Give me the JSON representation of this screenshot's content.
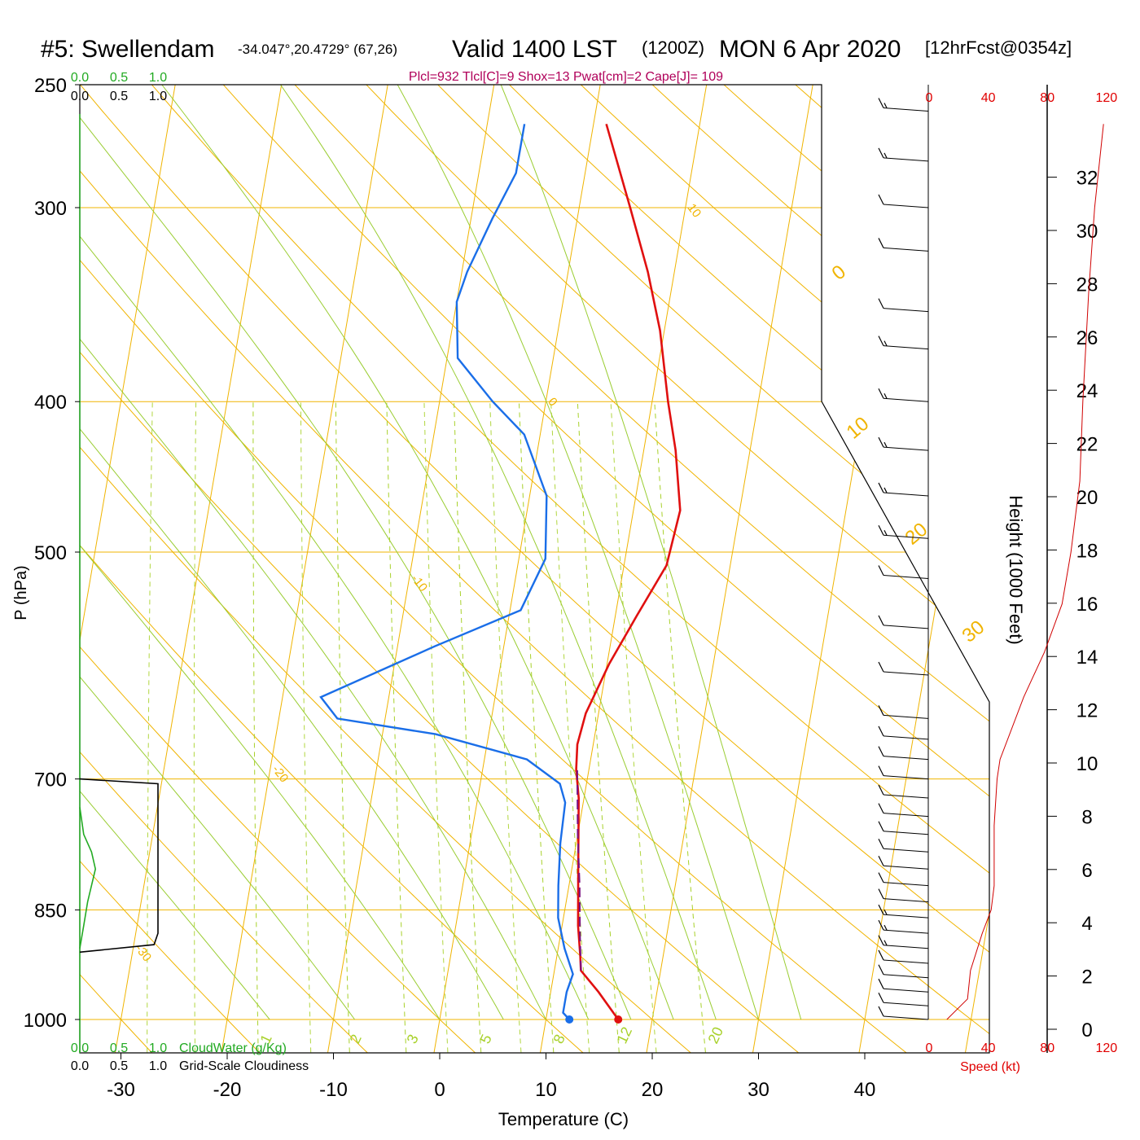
{
  "header": {
    "station": "#5: Swellendam",
    "coords": "-34.047°,20.4729° (67,26)",
    "valid": "Valid 1400 LST",
    "utc": "(1200Z)",
    "date": "MON 6 Apr 2020",
    "forecast": "[12hrFcst@0354z]",
    "indices": "Plcl=932 Tlcl[C]=9 Shox=13 Pwat[cm]=2 Cape[J]= 109"
  },
  "chart_data": {
    "type": "skew-t sounding",
    "xlabel": "Temperature (C)",
    "ylabel": "P (hPa)",
    "x_ticks": [
      -30,
      -20,
      -10,
      0,
      10,
      20,
      30,
      40
    ],
    "pressure_levels": [
      250,
      300,
      400,
      500,
      700,
      850,
      1000
    ],
    "pressure_tick_labels": [
      "250",
      "300",
      "400",
      "500",
      "700",
      "850",
      "1000"
    ],
    "height_label": "Height (1000 Feet)",
    "height_ticks": [
      0,
      2,
      4,
      6,
      8,
      10,
      12,
      14,
      16,
      18,
      20,
      22,
      24,
      26,
      28,
      30,
      32
    ],
    "speed_label": "Speed (kt)",
    "speed_ticks": [
      0,
      40,
      80,
      120
    ],
    "cloud_scale_ticks": [
      "0.0",
      "0.5",
      "1.0"
    ],
    "cloud_water_label": "CloudWater (g/Kg)",
    "cloudiness_label": "Grid-Scale Cloudiness",
    "isotherm_labels": [
      {
        "text": "10",
        "t": 10,
        "p": 300
      },
      {
        "text": "0",
        "t": 0,
        "p": 400
      },
      {
        "text": "-10",
        "t": -10,
        "p": 520
      },
      {
        "text": "-20",
        "t": -20,
        "p": 690
      },
      {
        "text": "-30",
        "t": -30,
        "p": 900
      }
    ],
    "theta_labels": [
      "0",
      "10",
      "20",
      "30"
    ],
    "mixing_ratio_labels": [
      "1",
      "2",
      "3",
      "5",
      "8",
      "12",
      "20"
    ],
    "mixing_ratios": [
      1,
      2,
      3,
      5,
      8,
      12,
      20
    ],
    "temperature_profile": [
      [
        16.8,
        1000
      ],
      [
        14.5,
        960
      ],
      [
        12.5,
        930
      ],
      [
        12.2,
        910
      ],
      [
        11.5,
        870
      ],
      [
        10.6,
        800
      ],
      [
        9.5,
        720
      ],
      [
        8.8,
        690
      ],
      [
        8.5,
        665
      ],
      [
        8.8,
        635
      ],
      [
        10.2,
        590
      ],
      [
        12.0,
        550
      ],
      [
        14.0,
        510
      ],
      [
        14.4,
        470
      ],
      [
        13.0,
        430
      ],
      [
        11.5,
        400
      ],
      [
        9.6,
        360
      ],
      [
        7.5,
        330
      ],
      [
        4.8,
        300
      ],
      [
        1.2,
        265
      ]
    ],
    "dewpoint_profile": [
      [
        12.2,
        1000
      ],
      [
        11.5,
        990
      ],
      [
        11.5,
        960
      ],
      [
        11.8,
        935
      ],
      [
        10.6,
        900
      ],
      [
        9.5,
        860
      ],
      [
        9.0,
        820
      ],
      [
        8.5,
        770
      ],
      [
        8.3,
        725
      ],
      [
        7.5,
        705
      ],
      [
        4.0,
        680
      ],
      [
        -5.0,
        655
      ],
      [
        -14.5,
        640
      ],
      [
        -16.4,
        620
      ],
      [
        -6.5,
        575
      ],
      [
        1.0,
        545
      ],
      [
        2.5,
        505
      ],
      [
        1.6,
        460
      ],
      [
        -1.5,
        420
      ],
      [
        -5.0,
        400
      ],
      [
        -9.0,
        375
      ],
      [
        -10.0,
        345
      ],
      [
        -9.5,
        330
      ],
      [
        -8.0,
        305
      ],
      [
        -6.5,
        285
      ],
      [
        -6.5,
        265
      ]
    ],
    "parcel_path": [
      [
        12.5,
        930
      ],
      [
        11.8,
        880
      ],
      [
        11.0,
        820
      ],
      [
        10.0,
        760
      ],
      [
        8.9,
        690
      ]
    ],
    "surface_temperature": 16.8,
    "surface_dewpoint": 12.2,
    "wind_profile": [
      [
        1000,
        10
      ],
      [
        980,
        12
      ],
      [
        960,
        12
      ],
      [
        940,
        14
      ],
      [
        920,
        14
      ],
      [
        900,
        15
      ],
      [
        880,
        15
      ],
      [
        860,
        15
      ],
      [
        840,
        14
      ],
      [
        820,
        12
      ],
      [
        800,
        12
      ],
      [
        780,
        12
      ],
      [
        760,
        12
      ],
      [
        740,
        12
      ],
      [
        720,
        12
      ],
      [
        700,
        12
      ],
      [
        680,
        14
      ],
      [
        660,
        14
      ],
      [
        640,
        14
      ],
      [
        600,
        12
      ],
      [
        560,
        12
      ],
      [
        520,
        14
      ],
      [
        490,
        16
      ],
      [
        460,
        16
      ],
      [
        430,
        18
      ],
      [
        400,
        18
      ],
      [
        370,
        16
      ],
      [
        350,
        14
      ],
      [
        320,
        14
      ],
      [
        300,
        14
      ],
      [
        280,
        16
      ],
      [
        260,
        16
      ]
    ],
    "wind_speed_profile": [
      [
        1000,
        12
      ],
      [
        970,
        26
      ],
      [
        930,
        28
      ],
      [
        880,
        36
      ],
      [
        850,
        42
      ],
      [
        820,
        44
      ],
      [
        750,
        44
      ],
      [
        700,
        46
      ],
      [
        680,
        48
      ],
      [
        620,
        64
      ],
      [
        580,
        78
      ],
      [
        540,
        90
      ],
      [
        500,
        96
      ],
      [
        450,
        102
      ],
      [
        400,
        104
      ],
      [
        340,
        108
      ],
      [
        300,
        112
      ],
      [
        265,
        118
      ]
    ],
    "cloud_water": [
      [
        900,
        0.0
      ],
      [
        870,
        0.05
      ],
      [
        840,
        0.1
      ],
      [
        800,
        0.2
      ],
      [
        780,
        0.15
      ],
      [
        760,
        0.05
      ],
      [
        730,
        0.0
      ]
    ],
    "cloudiness": [
      [
        905,
        0.0
      ],
      [
        895,
        0.95
      ],
      [
        880,
        1.0
      ],
      [
        860,
        1.0
      ],
      [
        750,
        1.0
      ],
      [
        705,
        1.0
      ],
      [
        700,
        0.0
      ]
    ]
  }
}
